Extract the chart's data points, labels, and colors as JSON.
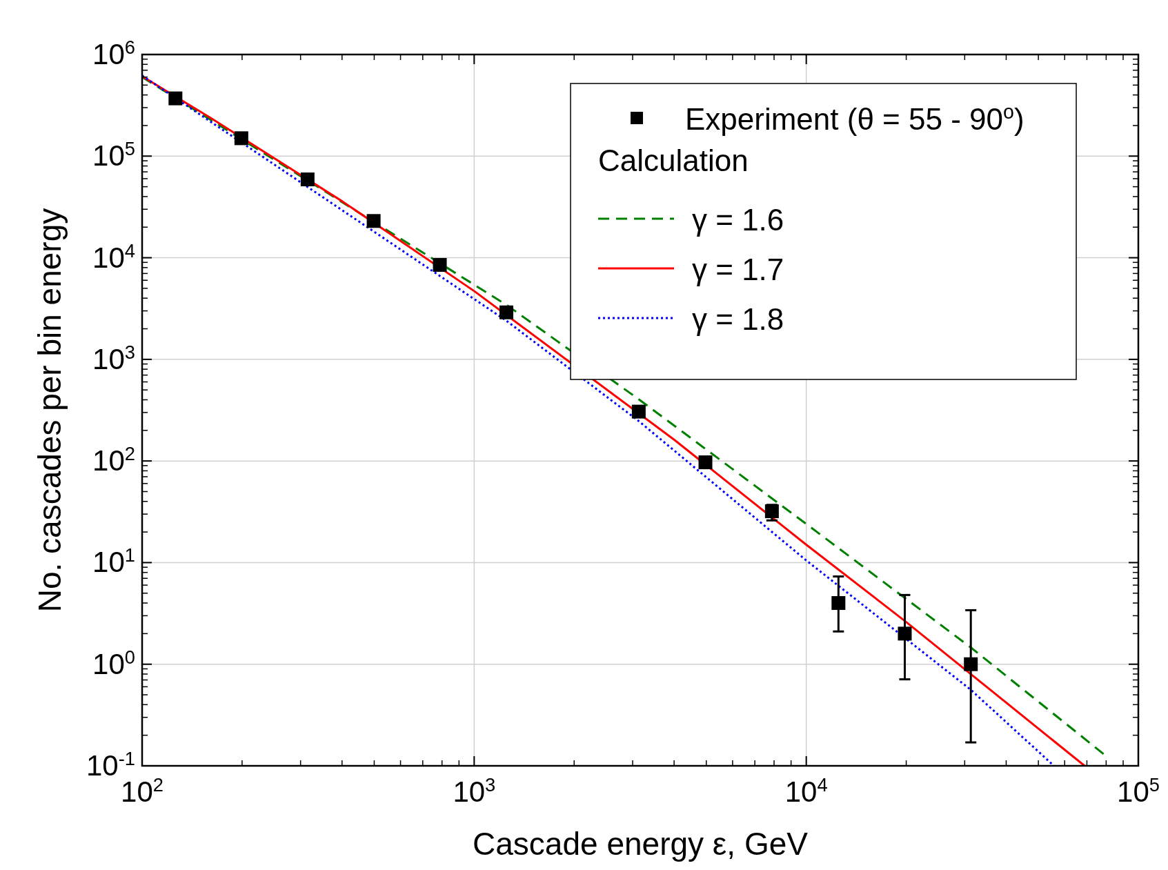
{
  "chart_data": {
    "type": "scatter",
    "xlabel": "Cascade energy ε, GeV",
    "ylabel": "No. cascades per bin energy",
    "log": "xy",
    "grid": true,
    "legend": "top right",
    "legend_title": "Calculation",
    "xlim": [
      100,
      100000
    ],
    "ylim": [
      0.1,
      1000000
    ],
    "xticks": [
      {
        "value": 100,
        "label": "10$^{2}$"
      },
      {
        "value": 1000,
        "label": "10$^{3}$"
      },
      {
        "value": 10000,
        "label": "10$^{4}$"
      },
      {
        "value": 100000,
        "label": "10$^{5}$"
      }
    ],
    "yticks": [
      {
        "value": 0.1,
        "label": "10$^{-1}$"
      },
      {
        "value": 1,
        "label": "10$^{0}$"
      },
      {
        "value": 10,
        "label": "10$^{1}$"
      },
      {
        "value": 100,
        "label": "10$^{2}$"
      },
      {
        "value": 1000,
        "label": "10$^{3}$"
      },
      {
        "value": 10000,
        "label": "10$^{4}$"
      },
      {
        "value": 100000,
        "label": "10$^{5}$"
      },
      {
        "value": 1000000,
        "label": "10$^{6}$"
      }
    ],
    "series": [
      {
        "name": "Experiment (θ = 55 - 90$^{o}$)",
        "color": "#000000",
        "marker": "square",
        "x": [
          126,
          199,
          315,
          498,
          788,
          1250,
          3130,
          4970,
          7880,
          12500,
          19800,
          31300
        ],
        "values": [
          370000,
          150000,
          59000,
          23000,
          8500,
          2900,
          306,
          97,
          32,
          4,
          2,
          1
        ],
        "errors": [
          null,
          null,
          null,
          null,
          null,
          null,
          null,
          null,
          [
            26,
            37
          ],
          [
            2.1,
            7.3
          ],
          [
            0.71,
            4.8
          ],
          [
            0.17,
            3.4
          ]
        ]
      },
      {
        "name": "γ = 1.6",
        "type": "line",
        "color": "#008000",
        "line_style": "dashed",
        "x": [
          100,
          1250,
          3130,
          10000,
          31300,
          80200
        ],
        "values": [
          600000,
          3440,
          405,
          24,
          1.46,
          0.124
        ]
      },
      {
        "name": "γ = 1.7",
        "type": "line",
        "color": "#ff0000",
        "line_style": "solid",
        "x": [
          100,
          160,
          400,
          1000,
          4000,
          10000,
          20000,
          68900
        ],
        "values": [
          610000,
          240000,
          36000,
          4700,
          162,
          15,
          2.6,
          0.1
        ]
      },
      {
        "name": "γ = 1.8",
        "type": "line",
        "color": "#0000ff",
        "line_style": "dotted",
        "x": [
          100,
          1250,
          3130,
          10000,
          31300,
          55700
        ],
        "values": [
          620000,
          2400,
          247,
          10.5,
          0.56,
          0.1
        ]
      }
    ]
  }
}
